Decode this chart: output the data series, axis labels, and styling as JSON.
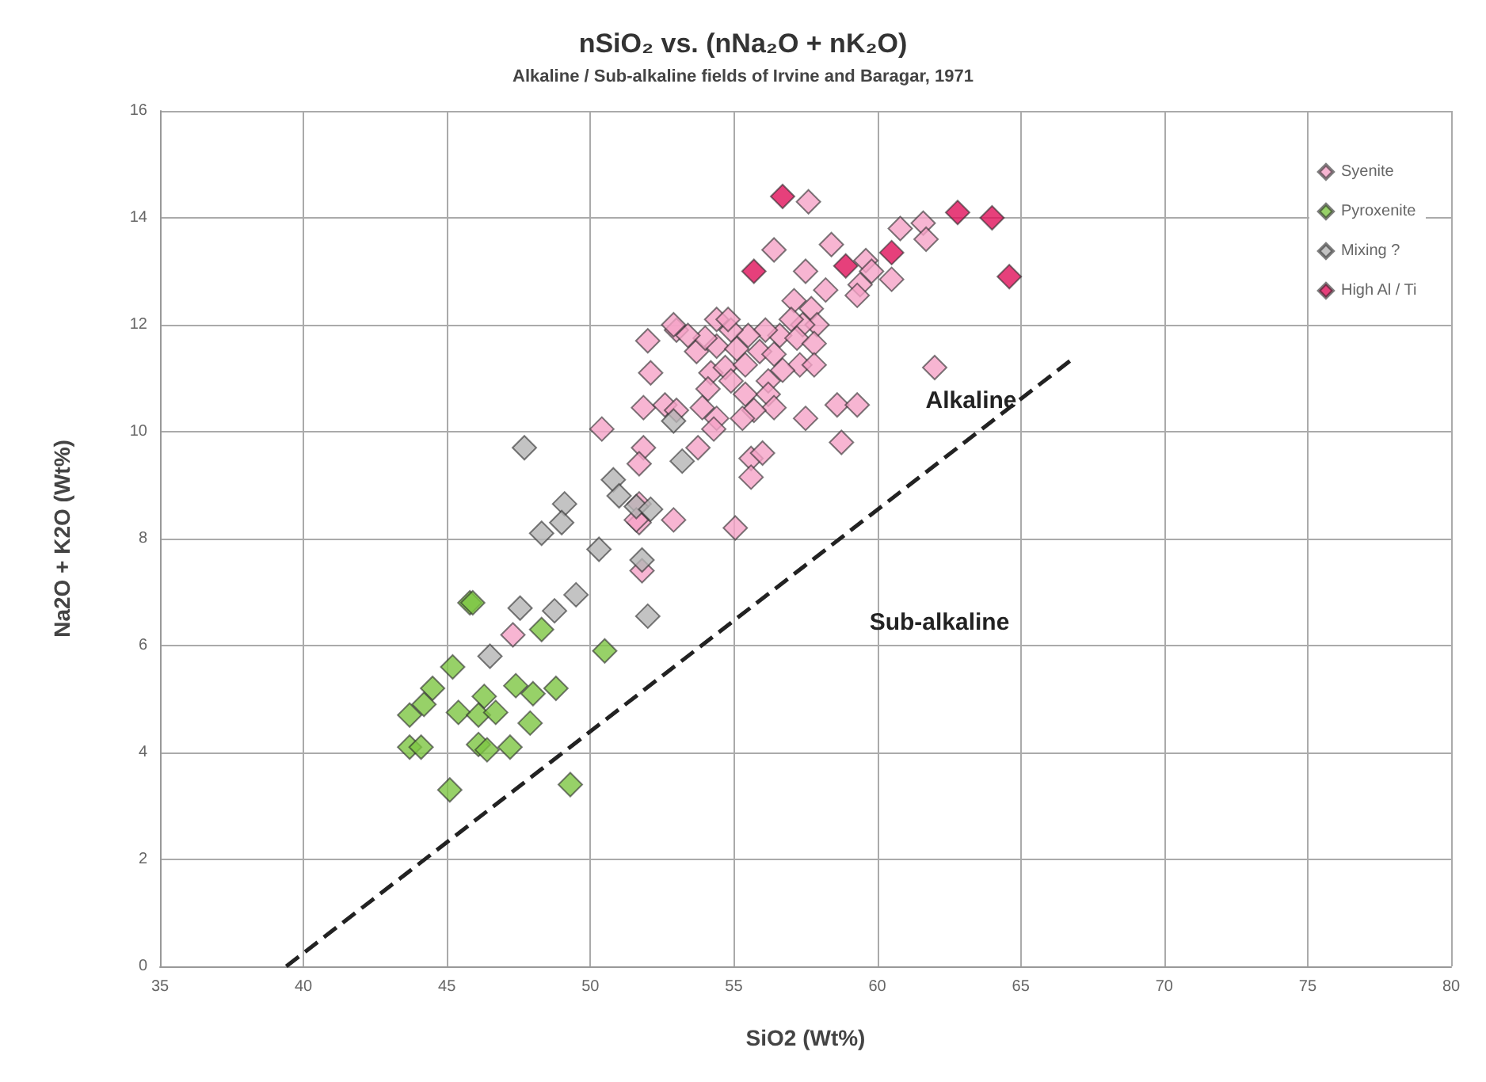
{
  "chart_data": {
    "type": "scatter",
    "title": "nSiO₂ vs. (nNa₂O + nK₂O)",
    "subtitle": "Alkaline / Sub-alkaline fields of Irvine and Baragar, 1971",
    "xlabel": "SiO2 (Wt%)",
    "ylabel": "Na2O + K2O (Wt%)",
    "xlim": [
      35,
      80
    ],
    "xticks": [
      35,
      40,
      45,
      50,
      55,
      60,
      65,
      70,
      75,
      80
    ],
    "ylim": [
      0,
      16
    ],
    "yticks": [
      0,
      2,
      4,
      6,
      8,
      10,
      12,
      14,
      16
    ],
    "grid": true,
    "legend": "top right",
    "marker": "diamond",
    "annotations": [
      "Alkaline",
      "Sub-alkaline"
    ],
    "series": [
      {
        "name": "Syenite",
        "color": "#f5a3c7",
        "x": [
          57.6,
          56.4,
          58.4,
          57.5,
          60.8,
          61.6,
          61.7,
          59.6,
          59.8,
          59.4,
          60.5,
          58.2,
          59.3,
          62.0,
          57.1,
          57.7,
          57.9,
          57.4,
          57.0,
          56.6,
          57.2,
          57.8,
          56.1,
          55.5,
          54.9,
          54.4,
          54.8,
          54.4,
          55.1,
          55.9,
          56.4,
          57.3,
          57.8,
          53.7,
          54.0,
          53.0,
          53.4,
          52.9,
          52.0,
          52.1,
          54.2,
          54.7,
          55.4,
          54.9,
          54.1,
          56.2,
          56.7,
          55.4,
          56.2,
          56.4,
          55.7,
          53.9,
          54.4,
          55.3,
          57.5,
          58.6,
          59.3,
          51.85,
          52.6,
          53.0,
          50.4,
          51.85,
          51.7,
          53.75,
          54.3,
          55.6,
          56.0,
          55.6,
          58.75,
          52.9,
          55.05,
          51.7,
          51.7,
          51.6,
          51.8,
          47.3
        ],
        "values": [
          14.3,
          13.4,
          13.5,
          13.0,
          13.8,
          13.9,
          13.6,
          13.2,
          13.0,
          12.75,
          12.85,
          12.65,
          12.55,
          11.2,
          12.45,
          12.3,
          12.0,
          12.0,
          12.1,
          11.8,
          11.75,
          11.65,
          11.9,
          11.8,
          11.9,
          12.1,
          12.1,
          11.6,
          11.55,
          11.5,
          11.45,
          11.25,
          11.25,
          11.5,
          11.75,
          11.9,
          11.8,
          12.0,
          11.7,
          11.1,
          11.1,
          11.2,
          11.25,
          10.95,
          10.8,
          10.95,
          11.15,
          10.7,
          10.7,
          10.45,
          10.4,
          10.45,
          10.25,
          10.25,
          10.25,
          10.5,
          10.5,
          10.45,
          10.5,
          10.4,
          10.05,
          9.7,
          9.4,
          9.7,
          10.05,
          9.5,
          9.6,
          9.15,
          9.8,
          8.35,
          8.2,
          8.65,
          8.3,
          8.35,
          7.4,
          6.2
        ]
      },
      {
        "name": "Pyroxenite",
        "color": "#7dc642",
        "x": [
          45.8,
          45.9,
          48.3,
          50.5,
          45.2,
          44.5,
          44.2,
          43.7,
          45.4,
          46.3,
          46.1,
          46.7,
          47.4,
          48.0,
          48.8,
          47.9,
          43.7,
          44.1,
          46.1,
          46.4,
          47.2,
          45.1,
          49.3
        ],
        "values": [
          6.8,
          6.8,
          6.3,
          5.9,
          5.6,
          5.2,
          4.9,
          4.7,
          4.75,
          5.05,
          4.7,
          4.75,
          5.25,
          5.1,
          5.2,
          4.55,
          4.1,
          4.1,
          4.15,
          4.05,
          4.1,
          3.3,
          3.4
        ]
      },
      {
        "name": "Mixing ?",
        "color": "#b4b4b4",
        "x": [
          47.7,
          49.1,
          49.0,
          48.3,
          50.8,
          51.0,
          51.6,
          52.1,
          50.3,
          51.8,
          52.0,
          52.9,
          53.2,
          49.5,
          48.75,
          47.55,
          46.5
        ],
        "values": [
          9.7,
          8.65,
          8.3,
          8.1,
          9.1,
          8.8,
          8.6,
          8.55,
          7.8,
          7.6,
          6.55,
          10.2,
          9.45,
          6.95,
          6.65,
          6.7,
          5.8
        ]
      },
      {
        "name": "High Al / Ti",
        "color": "#e0105a",
        "x": [
          56.7,
          55.7,
          58.9,
          60.5,
          62.8,
          64.0,
          64.6
        ],
        "values": [
          14.4,
          13.0,
          13.1,
          13.35,
          14.1,
          14.0,
          12.9
        ]
      },
      {
        "type": "line",
        "color": "#222222",
        "line_style": "dashed",
        "marker": "none",
        "x": [
          39.4,
          66.9
        ],
        "values": [
          0,
          11.4
        ]
      }
    ]
  }
}
